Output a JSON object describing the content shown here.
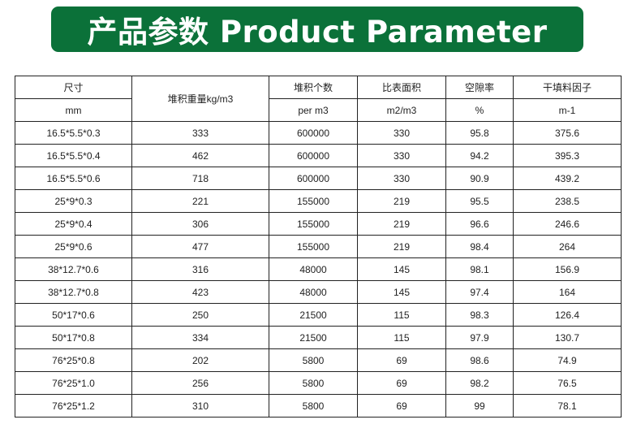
{
  "banner": {
    "title": "产品参数 Product Parameter"
  },
  "table": {
    "header_row1": [
      "尺寸",
      "堆积重量kg/m3",
      "堆积个数",
      "比表面积",
      "空隙率",
      "干填料因子"
    ],
    "header_row2": [
      "mm",
      "per m3",
      "m2/m3",
      "%",
      "m-1"
    ],
    "rows": [
      [
        "16.5*5.5*0.3",
        "333",
        "600000",
        "330",
        "95.8",
        "375.6"
      ],
      [
        "16.5*5.5*0.4",
        "462",
        "600000",
        "330",
        "94.2",
        "395.3"
      ],
      [
        "16.5*5.5*0.6",
        "718",
        "600000",
        "330",
        "90.9",
        "439.2"
      ],
      [
        "25*9*0.3",
        "221",
        "155000",
        "219",
        "95.5",
        "238.5"
      ],
      [
        "25*9*0.4",
        "306",
        "155000",
        "219",
        "96.6",
        "246.6"
      ],
      [
        "25*9*0.6",
        "477",
        "155000",
        "219",
        "98.4",
        "264"
      ],
      [
        "38*12.7*0.6",
        "316",
        "48000",
        "145",
        "98.1",
        "156.9"
      ],
      [
        "38*12.7*0.8",
        "423",
        "48000",
        "145",
        "97.4",
        "164"
      ],
      [
        "50*17*0.6",
        "250",
        "21500",
        "115",
        "98.3",
        "126.4"
      ],
      [
        "50*17*0.8",
        "334",
        "21500",
        "115",
        "97.9",
        "130.7"
      ],
      [
        "76*25*0.8",
        "202",
        "5800",
        "69",
        "98.6",
        "74.9"
      ],
      [
        "76*25*1.0",
        "256",
        "5800",
        "69",
        "98.2",
        "76.5"
      ],
      [
        "76*25*1.2",
        "310",
        "5800",
        "69",
        "99",
        "78.1"
      ]
    ]
  },
  "colors": {
    "banner": "#0b7139",
    "border": "#222222"
  }
}
